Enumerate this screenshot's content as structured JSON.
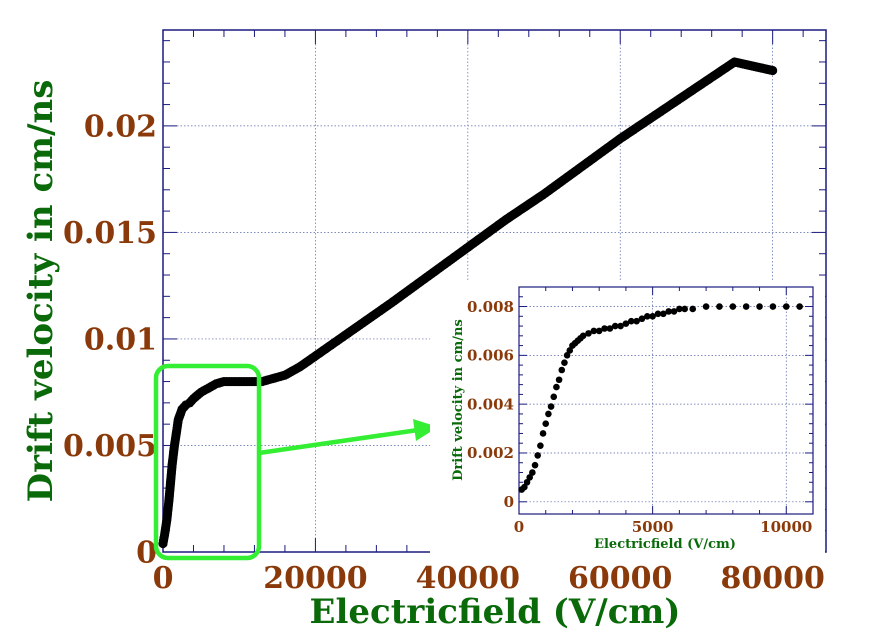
{
  "chart_data": [
    {
      "type": "scatter",
      "title": "",
      "xlabel": "Electricfield (V/cm)",
      "ylabel": "Drift velocity in cm/ns",
      "xlim": [
        0,
        87000
      ],
      "ylim": [
        0,
        0.0245
      ],
      "xticks": [
        0,
        20000,
        40000,
        60000,
        80000
      ],
      "xtick_labels": [
        "0",
        "20000",
        "40000",
        "60000",
        "80000"
      ],
      "yticks": [
        0,
        0.005,
        0.01,
        0.015,
        0.02
      ],
      "ytick_labels": [
        "0",
        "0.005",
        "0.01",
        "0.015",
        "0.02"
      ],
      "grid": true,
      "marker_color": "#000000",
      "series": [
        {
          "name": "",
          "x": [
            0,
            200,
            500,
            800,
            1000,
            1200,
            1500,
            1800,
            2000,
            2500,
            3000,
            3500,
            4000,
            5000,
            6000,
            7000,
            8000,
            9000,
            10000,
            11000,
            12000,
            13000,
            14000,
            15000,
            16000,
            18000,
            20000,
            22000,
            24000,
            26000,
            28000,
            30000,
            35000,
            40000,
            45000,
            50000,
            55000,
            60000,
            65000,
            70000,
            75000,
            80000
          ],
          "y": [
            0.0004,
            0.0008,
            0.0015,
            0.0025,
            0.0033,
            0.0041,
            0.005,
            0.0057,
            0.0062,
            0.0067,
            0.0069,
            0.007,
            0.0072,
            0.0075,
            0.0077,
            0.0079,
            0.008,
            0.008,
            0.008,
            0.008,
            0.008,
            0.008,
            0.0081,
            0.0082,
            0.0083,
            0.0087,
            0.0092,
            0.0097,
            0.0102,
            0.0107,
            0.0112,
            0.0117,
            0.013,
            0.0143,
            0.0156,
            0.0168,
            0.0181,
            0.0194,
            0.0206,
            0.0218,
            0.023,
            0.0226
          ]
        }
      ]
    },
    {
      "type": "scatter",
      "title": "",
      "xlabel": "Electricfield (V/cm)",
      "ylabel": "Drift velocity in cm/ns",
      "xlim": [
        0,
        11000
      ],
      "ylim": [
        -0.0005,
        0.0088
      ],
      "xticks": [
        0,
        5000,
        10000
      ],
      "xtick_labels": [
        "0",
        "5000",
        "10000"
      ],
      "yticks": [
        0,
        0.002,
        0.004,
        0.006,
        0.008
      ],
      "ytick_labels": [
        "0",
        "0.002",
        "0.004",
        "0.006",
        "0.008"
      ],
      "grid": true,
      "marker_color": "#000000",
      "series": [
        {
          "name": "",
          "x": [
            100,
            200,
            300,
            400,
            500,
            600,
            700,
            800,
            900,
            1000,
            1100,
            1200,
            1300,
            1400,
            1500,
            1600,
            1700,
            1800,
            1900,
            2000,
            2100,
            2200,
            2300,
            2400,
            2600,
            2800,
            3000,
            3200,
            3400,
            3600,
            3800,
            4000,
            4200,
            4400,
            4600,
            4800,
            5000,
            5200,
            5400,
            5600,
            5800,
            6000,
            6200,
            6500,
            7000,
            7500,
            8000,
            8500,
            9000,
            9500,
            10000,
            10500
          ],
          "y": [
            0.0005,
            0.0006,
            0.0008,
            0.001,
            0.0012,
            0.0015,
            0.0019,
            0.0023,
            0.0028,
            0.0032,
            0.0036,
            0.0039,
            0.0043,
            0.0047,
            0.005,
            0.0054,
            0.0057,
            0.006,
            0.0062,
            0.0064,
            0.0065,
            0.0066,
            0.0067,
            0.0068,
            0.0069,
            0.007,
            0.007,
            0.0071,
            0.0071,
            0.0072,
            0.0072,
            0.0073,
            0.0074,
            0.0074,
            0.0075,
            0.0076,
            0.0076,
            0.0077,
            0.0077,
            0.0078,
            0.0078,
            0.0079,
            0.0079,
            0.0079,
            0.008,
            0.008,
            0.008,
            0.008,
            0.008,
            0.008,
            0.008,
            0.008
          ]
        }
      ]
    }
  ]
}
